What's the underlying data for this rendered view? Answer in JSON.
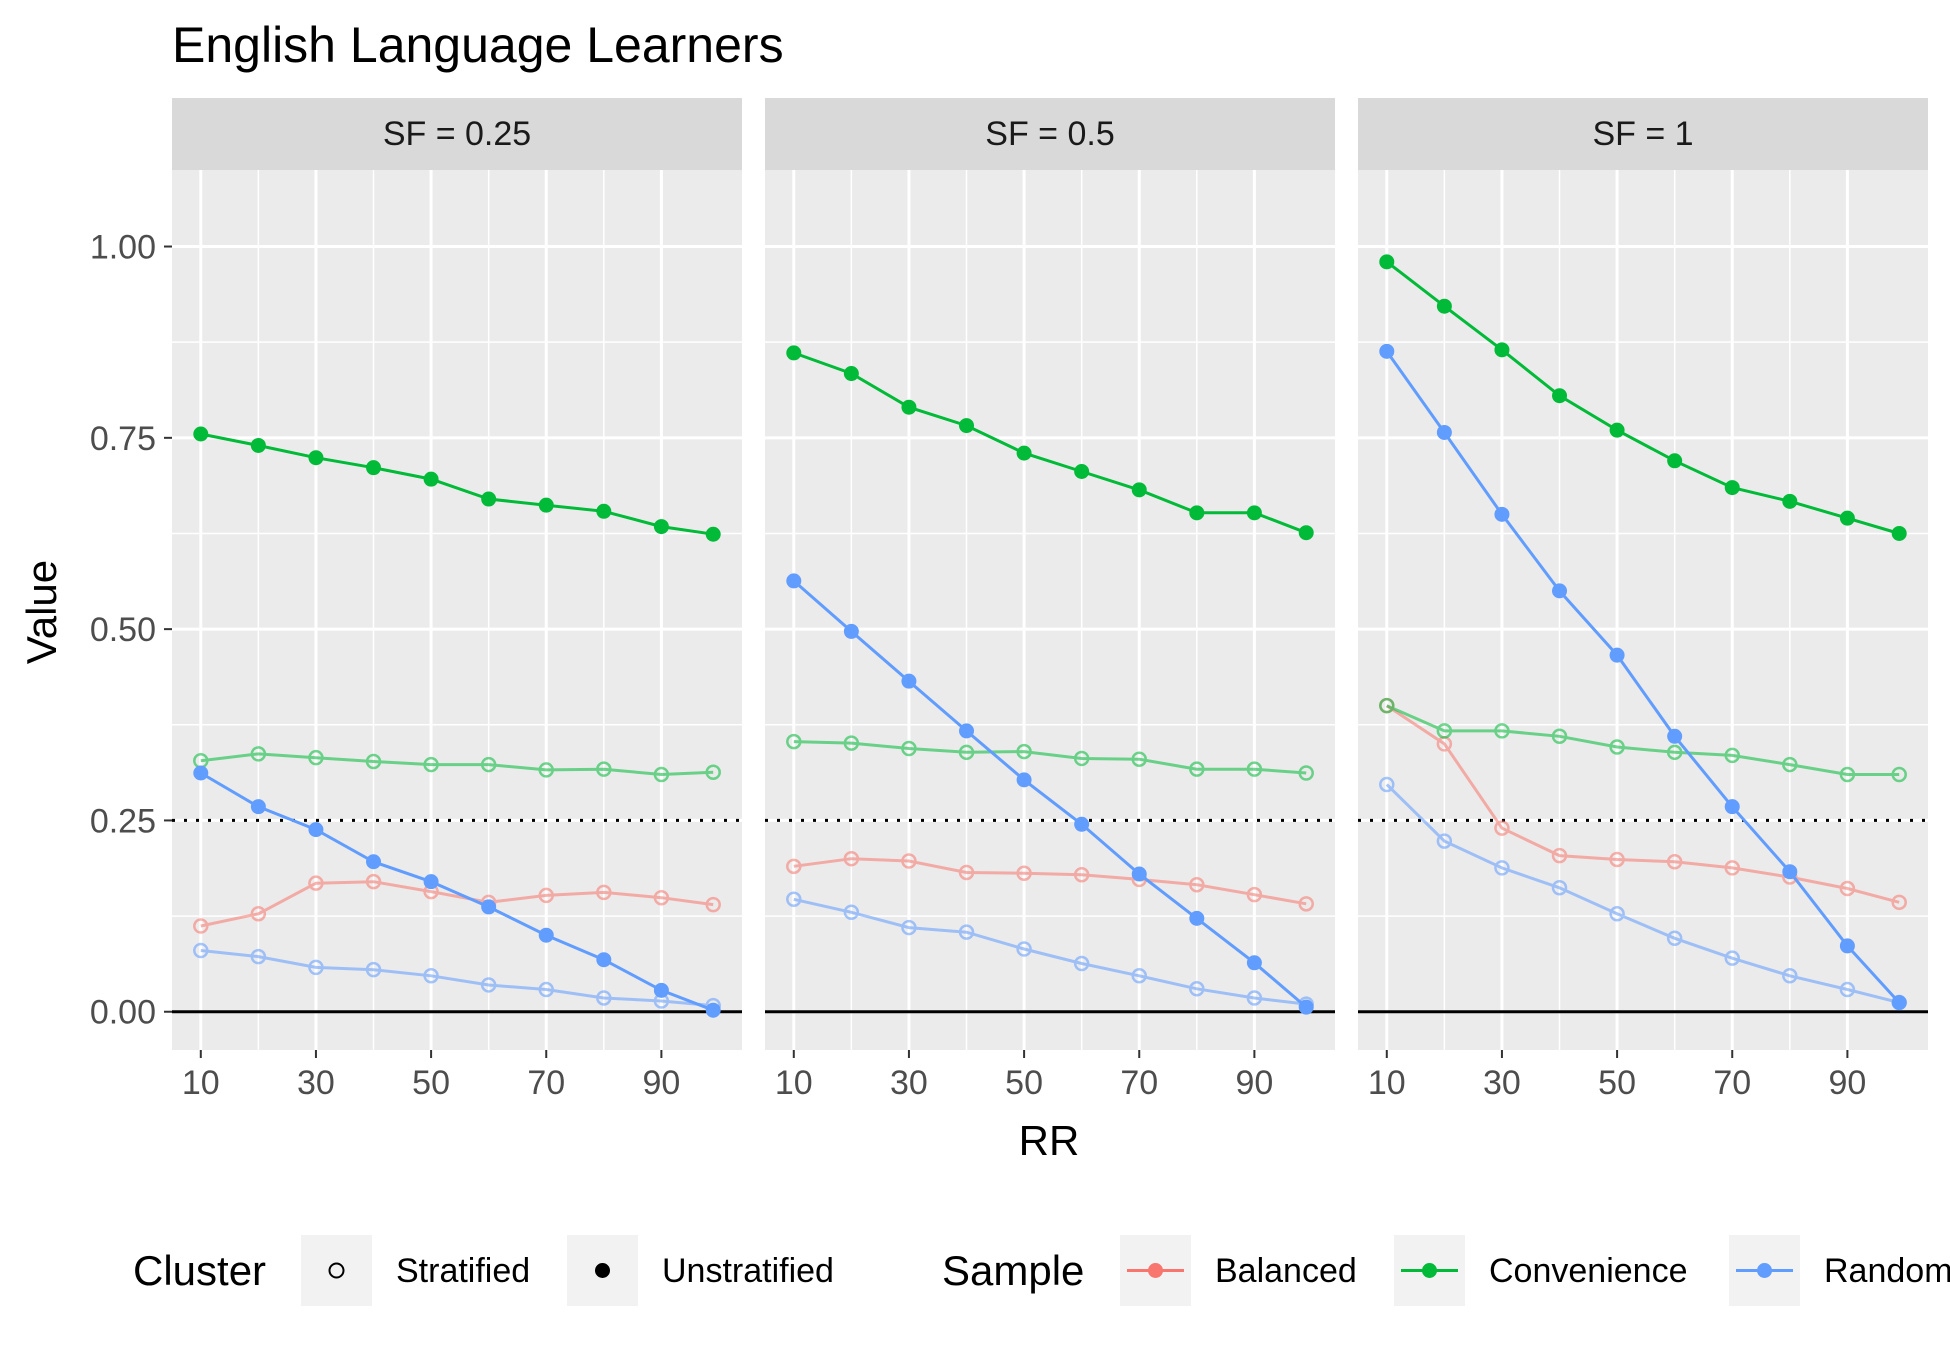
{
  "chart_data": {
    "type": "line",
    "title": "English Language Learners",
    "xlabel": "RR",
    "ylabel": "Value",
    "facet_label_prefix": "SF = ",
    "xlim": [
      5,
      104
    ],
    "ylim": [
      -0.05,
      1.1
    ],
    "x_ticks": [
      10,
      30,
      50,
      70,
      90
    ],
    "y_ticks": [
      0.0,
      0.25,
      0.5,
      0.75,
      1.0
    ],
    "y_tick_labels": [
      "0.00",
      "0.25",
      "0.50",
      "0.75",
      "1.00"
    ],
    "hlines": [
      {
        "y": 0.25,
        "style": "dotted"
      },
      {
        "y": 0.0,
        "style": "solid"
      }
    ],
    "grid": true,
    "legend_position": "bottom",
    "legends": {
      "cluster": {
        "title": "Cluster",
        "items": [
          "Stratified",
          "Unstratified"
        ]
      },
      "sample": {
        "title": "Sample",
        "items": [
          "Balanced",
          "Convenience",
          "Random"
        ]
      }
    },
    "colors": {
      "Balanced": "#F8766D",
      "Convenience": "#00BA38",
      "Random": "#619CFF"
    },
    "x": [
      10,
      20,
      30,
      40,
      50,
      60,
      70,
      80,
      90,
      99
    ],
    "facets": [
      {
        "sf": "0.25",
        "series": [
          {
            "sample": "Convenience",
            "cluster": "Unstratified",
            "values": [
              0.755,
              0.74,
              0.724,
              0.711,
              0.696,
              0.67,
              0.662,
              0.654,
              0.634,
              0.624
            ]
          },
          {
            "sample": "Convenience",
            "cluster": "Stratified",
            "values": [
              0.328,
              0.337,
              0.332,
              0.327,
              0.323,
              0.323,
              0.316,
              0.317,
              0.31,
              0.313
            ]
          },
          {
            "sample": "Random",
            "cluster": "Unstratified",
            "values": [
              0.312,
              0.268,
              0.238,
              0.196,
              0.17,
              0.137,
              0.1,
              0.068,
              0.028,
              0.002
            ]
          },
          {
            "sample": "Random",
            "cluster": "Stratified",
            "values": [
              0.08,
              0.072,
              0.058,
              0.055,
              0.047,
              0.035,
              0.029,
              0.018,
              0.014,
              0.008
            ]
          },
          {
            "sample": "Balanced",
            "cluster": "Stratified",
            "values": [
              0.112,
              0.128,
              0.168,
              0.17,
              0.157,
              0.143,
              0.152,
              0.156,
              0.149,
              0.14
            ]
          }
        ]
      },
      {
        "sf": "0.5",
        "series": [
          {
            "sample": "Convenience",
            "cluster": "Unstratified",
            "values": [
              0.861,
              0.834,
              0.79,
              0.766,
              0.73,
              0.706,
              0.682,
              0.652,
              0.652,
              0.626
            ]
          },
          {
            "sample": "Convenience",
            "cluster": "Stratified",
            "values": [
              0.353,
              0.351,
              0.344,
              0.339,
              0.34,
              0.331,
              0.33,
              0.317,
              0.317,
              0.312
            ]
          },
          {
            "sample": "Random",
            "cluster": "Unstratified",
            "values": [
              0.563,
              0.497,
              0.432,
              0.367,
              0.303,
              0.245,
              0.18,
              0.122,
              0.064,
              0.006
            ]
          },
          {
            "sample": "Random",
            "cluster": "Stratified",
            "values": [
              0.147,
              0.13,
              0.11,
              0.104,
              0.082,
              0.063,
              0.047,
              0.03,
              0.018,
              0.01
            ]
          },
          {
            "sample": "Balanced",
            "cluster": "Stratified",
            "values": [
              0.19,
              0.2,
              0.197,
              0.182,
              0.181,
              0.179,
              0.173,
              0.166,
              0.153,
              0.141
            ]
          }
        ]
      },
      {
        "sf": "1",
        "series": [
          {
            "sample": "Convenience",
            "cluster": "Unstratified",
            "values": [
              0.98,
              0.922,
              0.865,
              0.805,
              0.76,
              0.72,
              0.685,
              0.667,
              0.645,
              0.625
            ]
          },
          {
            "sample": "Convenience",
            "cluster": "Stratified",
            "values": [
              0.4,
              0.367,
              0.367,
              0.36,
              0.346,
              0.339,
              0.335,
              0.323,
              0.31,
              0.31
            ]
          },
          {
            "sample": "Random",
            "cluster": "Unstratified",
            "values": [
              0.863,
              0.757,
              0.65,
              0.55,
              0.466,
              0.36,
              0.268,
              0.183,
              0.086,
              0.012
            ]
          },
          {
            "sample": "Random",
            "cluster": "Stratified",
            "values": [
              0.297,
              0.223,
              0.188,
              0.162,
              0.128,
              0.096,
              0.07,
              0.047,
              0.029,
              0.012
            ]
          },
          {
            "sample": "Balanced",
            "cluster": "Stratified",
            "values": [
              0.4,
              0.35,
              0.24,
              0.204,
              0.199,
              0.196,
              0.188,
              0.176,
              0.161,
              0.143
            ]
          }
        ]
      }
    ]
  }
}
